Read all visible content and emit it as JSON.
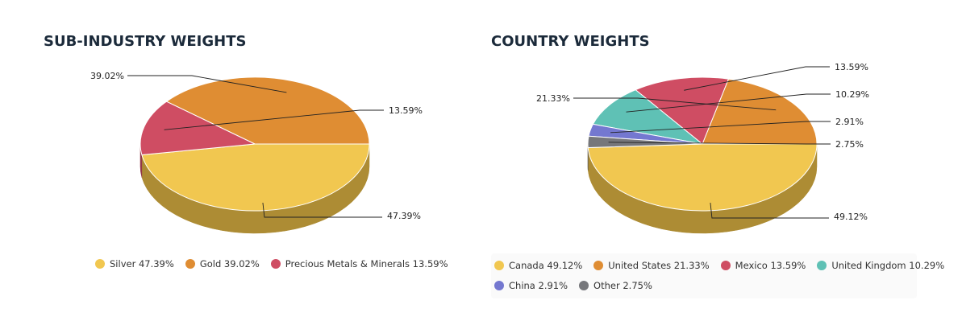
{
  "chart_data": [
    {
      "type": "pie",
      "title": "SUB-INDUSTRY WEIGHTS",
      "slices": [
        {
          "name": "Silver",
          "value": 47.39,
          "label": "47.39%",
          "legend": "Silver 47.39%",
          "color": "#f1c750",
          "side_color": "#ad8c34"
        },
        {
          "name": "Gold",
          "value": 39.02,
          "label": "39.02%",
          "legend": "Gold 39.02%",
          "color": "#df8d33",
          "side_color": "#9c6224"
        },
        {
          "name": "Precious Metals & Minerals",
          "value": 13.59,
          "label": "13.59%",
          "legend": "Precious Metals & Minerals 13.59%",
          "color": "#cf4d63",
          "side_color": "#913646"
        }
      ]
    },
    {
      "type": "pie",
      "title": "COUNTRY WEIGHTS",
      "slices": [
        {
          "name": "Canada",
          "value": 49.12,
          "label": "49.12%",
          "legend": "Canada 49.12%",
          "color": "#f1c750",
          "side_color": "#ad8c34"
        },
        {
          "name": "United States",
          "value": 21.33,
          "label": "21.33%",
          "legend": "United States 21.33%",
          "color": "#df8d33",
          "side_color": "#9c6224"
        },
        {
          "name": "Mexico",
          "value": 13.59,
          "label": "13.59%",
          "legend": "Mexico 13.59%",
          "color": "#cf4d63",
          "side_color": "#913646"
        },
        {
          "name": "United Kingdom",
          "value": 10.29,
          "label": "10.29%",
          "legend": "United Kingdom 10.29%",
          "color": "#5fc1b5",
          "side_color": "#43877f"
        },
        {
          "name": "China",
          "value": 2.91,
          "label": "2.91%",
          "legend": "China 2.91%",
          "color": "#7478d0",
          "side_color": "#525492"
        },
        {
          "name": "Other",
          "value": 2.75,
          "label": "2.75%",
          "legend": "Other 2.75%",
          "color": "#76777b",
          "side_color": "#535456"
        }
      ]
    }
  ]
}
